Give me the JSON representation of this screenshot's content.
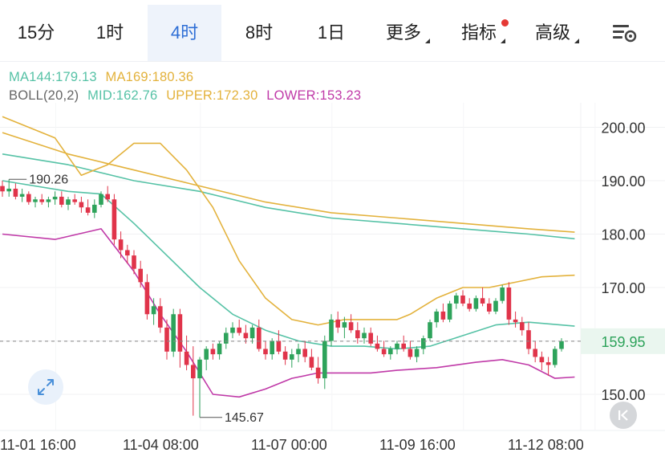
{
  "tabs": [
    {
      "label": "15分",
      "active": false
    },
    {
      "label": "1时",
      "active": false
    },
    {
      "label": "4时",
      "active": true
    },
    {
      "label": "8时",
      "active": false
    },
    {
      "label": "1日",
      "active": false
    },
    {
      "label": "更多",
      "active": false,
      "dropdown": true
    },
    {
      "label": "指标",
      "active": false,
      "dropdown": true,
      "badge": true
    },
    {
      "label": "高级",
      "active": false,
      "dropdown": true
    }
  ],
  "settings_icon": "chart-settings-icon",
  "legend": {
    "ma144": "MA144:179.13",
    "ma169": "MA169:180.36",
    "boll": "BOLL(20,2)",
    "mid": "MID:162.76",
    "upper": "UPPER:172.30",
    "lower": "LOWER:153.23"
  },
  "colors": {
    "up": "#2ea35b",
    "down": "#e0344a",
    "ma144": "#56c2a6",
    "ma169": "#e3b23c",
    "mid": "#56c2a6",
    "upper": "#e3b23c",
    "lower": "#c03aa8",
    "accent": "#2f6fd6",
    "badge": "#e53935"
  },
  "chart_data": {
    "type": "candlestick",
    "ylim": [
      145,
      203
    ],
    "y_ticks": [
      150,
      160,
      170,
      180,
      190,
      200
    ],
    "y_tick_labels": [
      "150.00",
      "170.00",
      "180.00",
      "190.00",
      "200.00"
    ],
    "current_price": 159.95,
    "current_price_label": "159.95",
    "high_label": "190.26",
    "high_value": 190.26,
    "high_index": 1,
    "low_label": "145.67",
    "low_value": 145.67,
    "low_index": 30,
    "x_labels": [
      {
        "label": "11-01 16:00",
        "index": 2
      },
      {
        "label": "11-04 08:00",
        "index": 24
      },
      {
        "label": "11-07 00:00",
        "index": 44
      },
      {
        "label": "11-09 16:00",
        "index": 64
      },
      {
        "label": "11-12 08:00",
        "index": 84
      }
    ],
    "ohlc": [
      [
        189,
        190,
        187,
        188
      ],
      [
        188,
        190.26,
        187,
        188.5
      ],
      [
        188.5,
        189.5,
        186.5,
        187
      ],
      [
        187,
        188.5,
        186,
        187.5
      ],
      [
        187.5,
        188,
        185.5,
        186
      ],
      [
        186,
        187,
        185,
        186.5
      ],
      [
        186.5,
        187.5,
        185.5,
        186
      ],
      [
        186,
        187,
        185,
        186.5
      ],
      [
        186.5,
        188,
        185.5,
        187
      ],
      [
        187,
        188,
        185,
        185.5
      ],
      [
        185.5,
        187,
        184.5,
        186.5
      ],
      [
        186.5,
        187.5,
        185.5,
        186
      ],
      [
        186,
        187,
        184,
        185
      ],
      [
        185,
        186.5,
        183.5,
        184
      ],
      [
        184,
        186.5,
        183,
        185.5
      ],
      [
        185.5,
        188,
        185,
        187.5
      ],
      [
        187.5,
        189,
        186,
        186.5
      ],
      [
        186.5,
        187.5,
        178,
        179
      ],
      [
        179,
        180.5,
        175.5,
        177
      ],
      [
        177,
        178,
        174.5,
        176
      ],
      [
        176,
        177,
        172.5,
        173.5
      ],
      [
        173.5,
        175,
        170,
        171
      ],
      [
        171,
        172.5,
        164,
        165
      ],
      [
        165,
        168,
        163,
        166.5
      ],
      [
        166.5,
        168,
        161.5,
        162.5
      ],
      [
        162.5,
        164,
        156.5,
        158
      ],
      [
        158,
        166,
        157,
        165
      ],
      [
        165,
        166,
        155,
        158
      ],
      [
        158,
        161,
        154.5,
        155.5
      ],
      [
        155.5,
        159,
        146,
        153
      ],
      [
        153,
        157,
        145.67,
        156.5
      ],
      [
        156.5,
        159,
        154.5,
        158.5
      ],
      [
        158.5,
        159.5,
        156.5,
        157.5
      ],
      [
        157.5,
        160,
        156.5,
        159.5
      ],
      [
        159.5,
        162.5,
        158.5,
        161.5
      ],
      [
        161.5,
        163.5,
        160.5,
        162.5
      ],
      [
        162.5,
        164,
        161,
        161.5
      ],
      [
        161.5,
        163,
        159.5,
        160.5
      ],
      [
        160.5,
        163,
        159.5,
        162.5
      ],
      [
        162.5,
        164,
        158,
        158.5
      ],
      [
        158.5,
        160,
        156.5,
        157.5
      ],
      [
        157.5,
        160.5,
        156.5,
        160
      ],
      [
        160,
        162,
        157.5,
        158
      ],
      [
        158,
        159,
        155.5,
        156.5
      ],
      [
        156.5,
        158.5,
        155,
        157.5
      ],
      [
        157.5,
        159.5,
        156,
        158.5
      ],
      [
        158.5,
        160,
        156,
        157
      ],
      [
        157,
        158.5,
        154.5,
        155
      ],
      [
        155,
        157,
        152,
        153
      ],
      [
        153,
        161,
        151,
        160
      ],
      [
        160,
        165,
        159,
        164
      ],
      [
        164,
        165.5,
        161.5,
        162.5
      ],
      [
        162.5,
        164.5,
        160.5,
        163.5
      ],
      [
        163.5,
        165,
        161.5,
        162
      ],
      [
        162,
        163.5,
        159.5,
        160.5
      ],
      [
        160.5,
        162.5,
        159.5,
        161.5
      ],
      [
        161.5,
        162.5,
        159,
        159.5
      ],
      [
        159.5,
        161,
        158,
        158.5
      ],
      [
        158.5,
        160,
        157,
        157.5
      ],
      [
        157.5,
        159,
        156.5,
        158.5
      ],
      [
        158.5,
        160,
        157.5,
        159.5
      ],
      [
        159.5,
        161,
        158,
        158.5
      ],
      [
        158.5,
        160,
        156.5,
        157
      ],
      [
        157,
        159,
        156,
        158.5
      ],
      [
        158.5,
        161,
        157.5,
        160.5
      ],
      [
        160.5,
        164,
        160,
        163.5
      ],
      [
        163.5,
        166,
        162.5,
        165.5
      ],
      [
        165.5,
        167,
        163.5,
        164
      ],
      [
        164,
        167.5,
        163.5,
        167
      ],
      [
        167,
        169,
        166,
        168.5
      ],
      [
        168.5,
        169.5,
        166.5,
        167
      ],
      [
        167,
        168,
        165.5,
        166
      ],
      [
        166,
        168.5,
        165.5,
        168
      ],
      [
        168,
        170,
        166.5,
        167
      ],
      [
        167,
        168,
        165,
        165.5
      ],
      [
        165.5,
        168,
        165,
        167.5
      ],
      [
        167.5,
        170.5,
        167,
        170
      ],
      [
        170,
        171,
        163,
        164
      ],
      [
        164,
        165.5,
        162.5,
        163.5
      ],
      [
        163.5,
        164.5,
        161,
        162
      ],
      [
        162,
        163.5,
        157.5,
        158.5
      ],
      [
        158.5,
        160,
        156,
        157
      ],
      [
        157,
        158,
        154.5,
        156
      ],
      [
        156,
        157,
        153.5,
        155.5
      ],
      [
        155.5,
        159,
        155,
        158.5
      ],
      [
        158.5,
        160.5,
        158,
        159.95
      ]
    ],
    "series": [
      {
        "name": "MA144",
        "values": [
          [
            0,
            195
          ],
          [
            10,
            193
          ],
          [
            20,
            190
          ],
          [
            30,
            188
          ],
          [
            40,
            185
          ],
          [
            50,
            183
          ],
          [
            60,
            182
          ],
          [
            70,
            181
          ],
          [
            80,
            180
          ],
          [
            87,
            179.13
          ]
        ]
      },
      {
        "name": "MA169",
        "values": [
          [
            0,
            199
          ],
          [
            10,
            195
          ],
          [
            20,
            192
          ],
          [
            30,
            189
          ],
          [
            40,
            186
          ],
          [
            50,
            184
          ],
          [
            60,
            183
          ],
          [
            70,
            182
          ],
          [
            80,
            181
          ],
          [
            87,
            180.36
          ]
        ]
      },
      {
        "name": "MID",
        "values": [
          [
            0,
            190
          ],
          [
            10,
            188
          ],
          [
            15,
            187.5
          ],
          [
            20,
            182
          ],
          [
            25,
            176
          ],
          [
            30,
            170
          ],
          [
            35,
            165
          ],
          [
            40,
            162
          ],
          [
            45,
            160
          ],
          [
            50,
            159
          ],
          [
            55,
            159
          ],
          [
            60,
            158.5
          ],
          [
            65,
            159
          ],
          [
            70,
            161
          ],
          [
            75,
            163
          ],
          [
            80,
            163.5
          ],
          [
            87,
            162.76
          ]
        ]
      },
      {
        "name": "UPPER",
        "values": [
          [
            0,
            202
          ],
          [
            8,
            198
          ],
          [
            12,
            191
          ],
          [
            16,
            193
          ],
          [
            20,
            197
          ],
          [
            24,
            197
          ],
          [
            28,
            192
          ],
          [
            32,
            185
          ],
          [
            36,
            175
          ],
          [
            40,
            168
          ],
          [
            44,
            164
          ],
          [
            48,
            163
          ],
          [
            52,
            164
          ],
          [
            56,
            164
          ],
          [
            60,
            164
          ],
          [
            62,
            165
          ],
          [
            66,
            168
          ],
          [
            70,
            170
          ],
          [
            74,
            170
          ],
          [
            78,
            171
          ],
          [
            82,
            172
          ],
          [
            87,
            172.3
          ]
        ]
      },
      {
        "name": "LOWER",
        "values": [
          [
            0,
            180
          ],
          [
            8,
            179
          ],
          [
            15,
            181
          ],
          [
            20,
            173
          ],
          [
            24,
            165
          ],
          [
            28,
            158
          ],
          [
            32,
            150
          ],
          [
            36,
            149.5
          ],
          [
            40,
            151
          ],
          [
            44,
            153
          ],
          [
            48,
            154
          ],
          [
            52,
            154
          ],
          [
            56,
            154
          ],
          [
            60,
            154.5
          ],
          [
            66,
            155
          ],
          [
            72,
            156
          ],
          [
            76,
            156.5
          ],
          [
            80,
            155.5
          ],
          [
            84,
            153
          ],
          [
            87,
            153.23
          ]
        ]
      }
    ]
  }
}
